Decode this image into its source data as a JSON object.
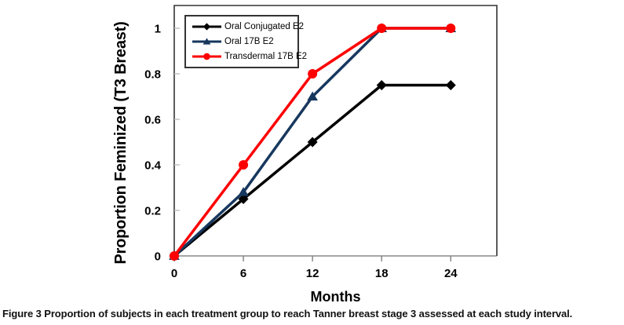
{
  "figure": {
    "caption_label": "Figure 3",
    "caption_text": "Proportion of subjects in each treatment group to reach Tanner breast stage 3 assessed at each study interval."
  },
  "chart_data": {
    "type": "line",
    "title": "",
    "xlabel": "Months",
    "ylabel": "Proportion Feminized (T3 Breast)",
    "x": [
      0,
      6,
      12,
      18,
      24
    ],
    "xticks": [
      0,
      6,
      12,
      18,
      24
    ],
    "yticks": [
      0,
      0.2,
      0.4,
      0.6,
      0.8,
      1
    ],
    "xlim": [
      0,
      28
    ],
    "ylim": [
      0,
      1.1
    ],
    "grid": false,
    "legend_position": "top-left-inside",
    "series": [
      {
        "name": "Oral Conjugated E2",
        "color": "#000000",
        "marker": "diamond",
        "values": [
          0,
          0.25,
          0.5,
          0.75,
          0.75
        ]
      },
      {
        "name": "Oral 17B E2",
        "color": "#17375E",
        "marker": "triangle",
        "values": [
          0,
          0.28,
          0.7,
          1,
          1
        ]
      },
      {
        "name": "Transdermal 17B E2",
        "color": "#FE0000",
        "marker": "circle",
        "values": [
          0,
          0.4,
          0.8,
          1,
          1
        ]
      }
    ],
    "axis_colors": {
      "frame": "#333333",
      "x_axis_line": "#A6A6A6",
      "x_tick": "#808080",
      "y_tick": "#BFBFBF"
    }
  }
}
